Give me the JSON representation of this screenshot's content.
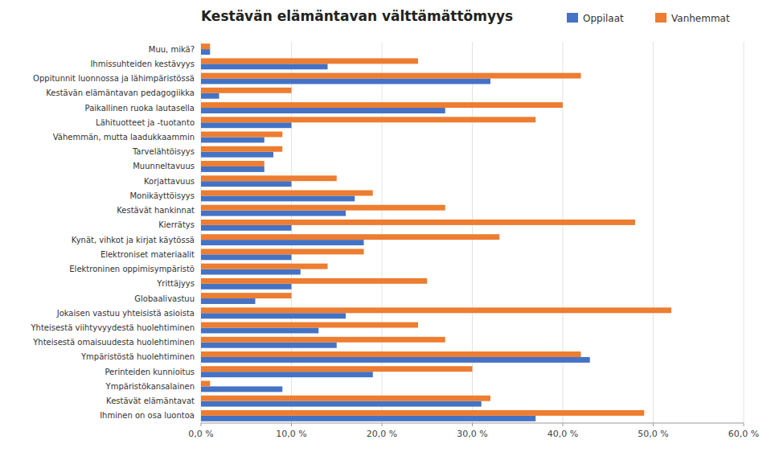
{
  "chart_data": {
    "type": "bar",
    "orientation": "horizontal",
    "title": "Kestävän elämäntavan välttämättömyys",
    "categories": [
      "Muu, mikä?",
      "Ihmissuhteiden kestävyys",
      "Oppitunnit luonnossa ja lähimpäristössä",
      "Kestävän elämäntavan pedagogiikka",
      "Paikallinen ruoka lautasella",
      "Lähituotteet ja -tuotanto",
      "Vähemmän, mutta laadukkaammin",
      "Tarvelähtöisyys",
      "Muunneltavuus",
      "Korjattavuus",
      "Monikäyttöisyys",
      "Kestävät hankinnat",
      "Kierrätys",
      "Kynät, vihkot ja kirjat käytössä",
      "Elektroniset materiaalit",
      "Elektroninen oppimisympäristö",
      "Yrittäjyys",
      "Globaalivastuu",
      "Jokaisen vastuu yhteisistä asioista",
      "Yhteisestä viihtyvyydestä huolehtiminen",
      "Yhteisestä omaisuudesta huolehtiminen",
      "Ympäristöstä huolehtiminen",
      "Perinteiden kunnioitus",
      "Ympäristökansalainen",
      "Kestävät elämäntavat",
      "Ihminen on osa luontoa"
    ],
    "series": [
      {
        "name": "Oppilaat",
        "color": "#4472C4",
        "values": [
          1.0,
          14.0,
          32.0,
          2.0,
          27.0,
          10.0,
          7.0,
          8.0,
          7.0,
          10.0,
          17.0,
          16.0,
          10.0,
          18.0,
          10.0,
          11.0,
          10.0,
          6.0,
          16.0,
          13.0,
          15.0,
          43.0,
          19.0,
          9.0,
          31.0,
          37.0
        ]
      },
      {
        "name": "Vanhemmat",
        "color": "#ED7D31",
        "values": [
          1.0,
          24.0,
          42.0,
          10.0,
          40.0,
          37.0,
          9.0,
          9.0,
          7.0,
          15.0,
          19.0,
          27.0,
          48.0,
          33.0,
          18.0,
          14.0,
          25.0,
          10.0,
          52.0,
          24.0,
          27.0,
          42.0,
          30.0,
          1.0,
          32.0,
          49.0
        ]
      }
    ],
    "xlim": [
      0,
      60
    ],
    "xticks": [
      {
        "value": 0,
        "label": "0,0 %"
      },
      {
        "value": 10,
        "label": "10,0 %"
      },
      {
        "value": 20,
        "label": "20,0 %"
      },
      {
        "value": 30,
        "label": "30,0 %"
      },
      {
        "value": 40,
        "label": "40,0 %"
      },
      {
        "value": 50,
        "label": "50,0 %"
      },
      {
        "value": 60,
        "label": "60,0 %"
      }
    ],
    "grid": true,
    "legend": "top-right"
  }
}
